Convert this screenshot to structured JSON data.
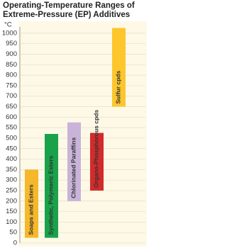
{
  "chart_data": {
    "type": "range-bar",
    "title": "Operating-Temperature Ranges of Extreme-Pressure (EP) Additives",
    "y_label": "°C",
    "categories": [
      "Soaps and Esters",
      "Synthetic, Polymeric Esters",
      "Chlorinated Paraffins",
      "Organo-Phosphorous cpds",
      "Sulfur cpds"
    ],
    "low": [
      25,
      25,
      200,
      250,
      650
    ],
    "high": [
      350,
      520,
      575,
      525,
      1025
    ],
    "colors": [
      "#f5b82a",
      "#19a24a",
      "#c9b3d9",
      "#d22b2b",
      "#fcc62c"
    ],
    "ylim": [
      0,
      1030
    ],
    "yticks": [
      0,
      50,
      100,
      150,
      200,
      250,
      300,
      350,
      400,
      450,
      500,
      550,
      600,
      650,
      700,
      750,
      800,
      850,
      900,
      950,
      1000
    ],
    "grid": true
  }
}
